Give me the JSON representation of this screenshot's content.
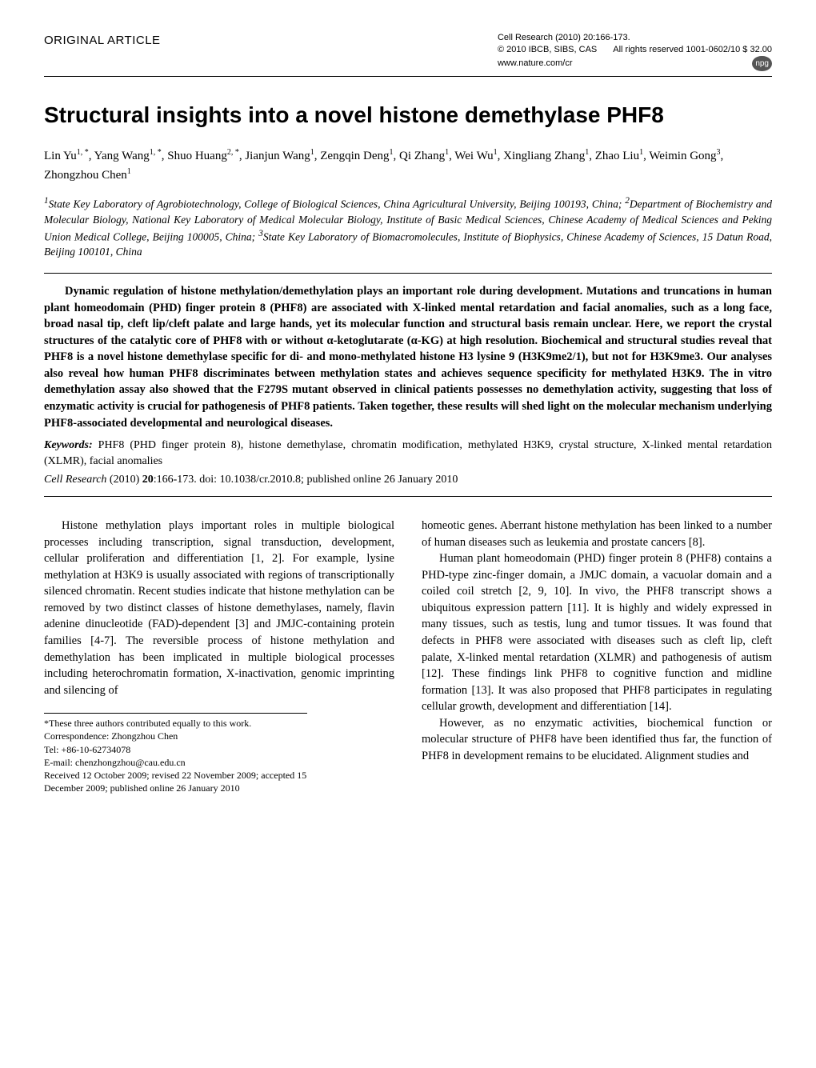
{
  "header": {
    "article_type": "ORIGINAL ARTICLE",
    "journal_line": "Cell Research (2010) 20:166-173.",
    "copyright": "© 2010 IBCB, SIBS, CAS",
    "rights": "All rights reserved 1001-0602/10  $ 32.00",
    "url": "www.nature.com/cr",
    "badge": "npg"
  },
  "title": "Structural insights into a novel histone demethylase PHF8",
  "authors_html": "Lin Yu<sup>1, *</sup>, Yang Wang<sup>1, *</sup>, Shuo Huang<sup>2, *</sup>, Jianjun Wang<sup>1</sup>, Zengqin Deng<sup>1</sup>, Qi Zhang<sup>1</sup>, Wei Wu<sup>1</sup>, Xingliang Zhang<sup>1</sup>, Zhao Liu<sup>1</sup>, Weimin Gong<sup>3</sup>, Zhongzhou Chen<sup>1</sup>",
  "affiliations_html": "<sup>1</sup>State Key Laboratory of Agrobiotechnology, College of Biological Sciences, China Agricultural University, Beijing 100193, China; <sup>2</sup>Department of Biochemistry and Molecular Biology, National Key Laboratory of Medical Molecular Biology, Institute of Basic Medical Sciences, Chinese Academy of Medical Sciences and Peking Union Medical College, Beijing 100005, China; <sup>3</sup>State Key Laboratory of Biomacromolecules, Institute of Biophysics, Chinese Academy of Sciences, 15 Datun Road, Beijing 100101, China",
  "abstract": "Dynamic regulation of histone methylation/demethylation plays an important role during development. Mutations and truncations in human plant homeodomain (PHD) finger protein 8 (PHF8) are associated with X-linked mental retardation and facial anomalies, such as a long face, broad nasal tip, cleft lip/cleft palate and large hands, yet its molecular function and structural basis remain unclear. Here, we report the crystal structures of the catalytic core of PHF8 with or without α-ketoglutarate (α-KG) at high resolution. Biochemical and structural studies reveal that PHF8 is a novel histone demethylase specific for di- and mono-methylated histone H3 lysine 9 (H3K9me2/1), but not for H3K9me3. Our analyses also reveal how human PHF8 discriminates between methylation states and achieves sequence specificity for methylated H3K9. The in vitro demethylation assay also showed that the F279S mutant observed in clinical patients possesses no demethylation activity, suggesting that loss of enzymatic activity is crucial for pathogenesis of PHF8 patients. Taken together, these results will shed light on the molecular mechanism underlying PHF8-associated developmental and neurological diseases.",
  "keywords_label": "Keywords:",
  "keywords": " PHF8 (PHD finger protein 8), histone demethylase, chromatin modification, methylated H3K9, crystal structure, X-linked mental retardation (XLMR), facial anomalies",
  "citation": {
    "journal": "Cell Research",
    "year": " (2010) ",
    "vol": "20",
    "rest": ":166-173. doi: 10.1038/cr.2010.8; published online 26 January 2010"
  },
  "body": {
    "left_p1": "Histone methylation plays important roles in multiple biological processes including transcription, signal transduction, development, cellular proliferation and differentiation [1, 2]. For example, lysine methylation at H3K9 is usually associated with regions of transcriptionally silenced chromatin. Recent studies indicate that histone methylation can be removed by two distinct classes of histone demethylases, namely, flavin adenine dinucleotide (FAD)-dependent [3] and JMJC-containing protein families [4-7]. The reversible process of histone methylation and demethylation has been implicated in multiple biological processes including heterochromatin formation, X-inactivation, genomic imprinting and silencing of",
    "right_p1": "homeotic genes. Aberrant histone methylation has been linked to a number of human diseases such as leukemia and prostate cancers [8].",
    "right_p2": "Human plant homeodomain (PHD) finger protein 8 (PHF8) contains a PHD-type zinc-finger domain, a JMJC domain, a vacuolar domain and a coiled coil stretch [2, 9, 10]. In vivo, the PHF8 transcript shows a ubiquitous expression pattern [11]. It is highly and widely expressed in many tissues, such as testis, lung and tumor tissues. It was found that defects in PHF8 were associated with diseases such as cleft lip, cleft palate, X-linked mental retardation (XLMR) and pathogenesis of autism [12]. These findings link PHF8 to cognitive function and midline formation [13]. It was also proposed that PHF8 participates in regulating cellular growth, development and differentiation [14].",
    "right_p3": "However, as no enzymatic activities, biochemical function or molecular structure of PHF8 have been identified thus far, the function of PHF8 in development remains to be elucidated. Alignment studies and"
  },
  "footnotes": {
    "equal": "*These three authors contributed equally to this work.",
    "correspondence": "Correspondence: Zhongzhou Chen",
    "tel": "Tel: +86-10-62734078",
    "email": "E-mail: chenzhongzhou@cau.edu.cn",
    "dates": "Received 12 October 2009; revised 22 November 2009; accepted 15 December 2009; published online 26 January 2010"
  }
}
